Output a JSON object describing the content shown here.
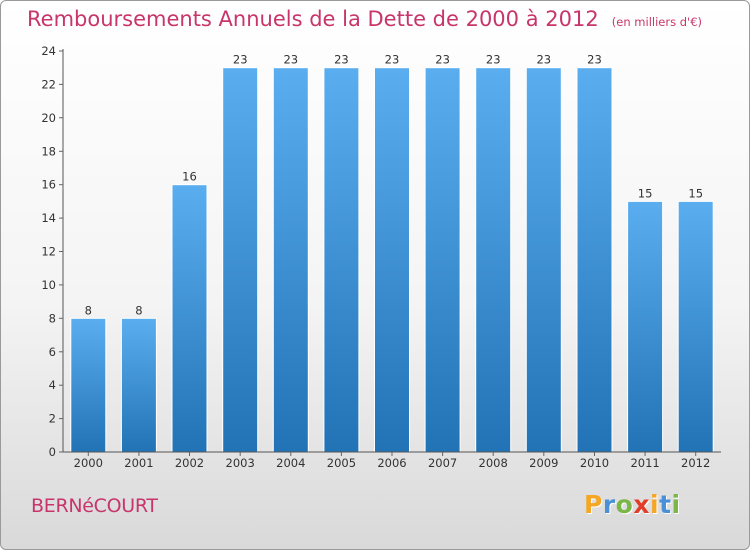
{
  "title": "Remboursements Annuels de la Dette de 2000 à 2012",
  "unit": "(en milliers d'€)",
  "commune": "BERNéCOURT",
  "logo": {
    "letters": [
      "P",
      "r",
      "o",
      "x",
      "i",
      "t",
      "i"
    ],
    "colors": [
      "#f5a623",
      "#4a90d9",
      "#7ab648",
      "#e23d28",
      "#f5a623",
      "#4a90d9",
      "#7ab648"
    ]
  },
  "colors": {
    "title": "#c8356a",
    "bar_top": "#5aaef0",
    "bar_bottom": "#2273b5"
  },
  "chart_data": {
    "type": "bar",
    "categories": [
      "2000",
      "2001",
      "2002",
      "2003",
      "2004",
      "2005",
      "2006",
      "2007",
      "2008",
      "2009",
      "2010",
      "2011",
      "2012"
    ],
    "values": [
      8,
      8,
      16,
      23,
      23,
      23,
      23,
      23,
      23,
      23,
      23,
      15,
      15
    ],
    "data_labels": [
      "8",
      "8",
      "16",
      "23",
      "23",
      "23",
      "23",
      "23",
      "23",
      "23",
      "23",
      "15",
      "15"
    ],
    "ylim": [
      0,
      24
    ],
    "yticks": [
      0,
      2,
      4,
      6,
      8,
      10,
      12,
      14,
      16,
      18,
      20,
      22,
      24
    ],
    "grid": false
  }
}
